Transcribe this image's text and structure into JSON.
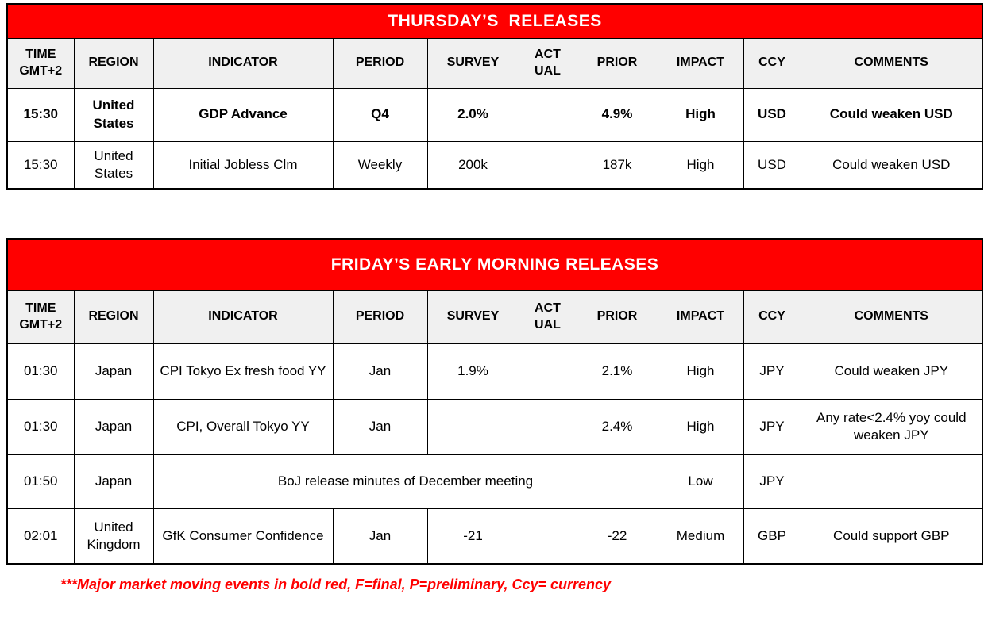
{
  "colors": {
    "accent_red": "#FF0000",
    "header_bg": "#F0F0F0",
    "border_color": "#000000",
    "text_color": "#000000"
  },
  "columns": {
    "time": "TIME\nGMT+2",
    "region": "REGION",
    "indicator": "INDICATOR",
    "period": "PERIOD",
    "survey": "SURVEY",
    "actual": "ACT\nUAL",
    "prior": "PRIOR",
    "impact": "IMPACT",
    "ccy": "CCY",
    "comments": "COMMENTS"
  },
  "tables": [
    {
      "title": "THURSDAY’S  RELEASES",
      "rows": [
        {
          "bold": true,
          "cells": [
            "15:30",
            "United States",
            "GDP Advance",
            "Q4",
            "2.0%",
            "",
            "4.9%",
            "High",
            "USD",
            "Could weaken USD"
          ]
        },
        {
          "bold": false,
          "cells": [
            "15:30",
            "United States",
            "Initial Jobless Clm",
            "Weekly",
            "200k",
            "",
            "187k",
            "High",
            "USD",
            "Could weaken USD"
          ]
        }
      ]
    },
    {
      "title": "FRIDAY’S EARLY MORNING RELEASES",
      "rows": [
        {
          "bold": false,
          "cells": [
            "01:30",
            "Japan",
            "CPI Tokyo Ex fresh food YY",
            "Jan",
            "1.9%",
            "",
            "2.1%",
            "High",
            "JPY",
            "Could weaken JPY"
          ]
        },
        {
          "bold": false,
          "cells": [
            "01:30",
            "Japan",
            "CPI, Overall Tokyo YY",
            "Jan",
            "",
            "",
            "2.4%",
            "High",
            "JPY",
            "Any rate<2.4% yoy could weaken JPY"
          ]
        },
        {
          "bold": false,
          "merged": true,
          "cells": [
            "01:50",
            "Japan",
            "BoJ release minutes of December meeting",
            "Low",
            "JPY",
            ""
          ]
        },
        {
          "bold": false,
          "cells": [
            "02:01",
            "United Kingdom",
            "GfK Consumer Confidence",
            "Jan",
            "-21",
            "",
            "-22",
            "Medium",
            "GBP",
            "Could support GBP"
          ]
        }
      ]
    }
  ],
  "footer_note": "***Major market moving events in bold red, F=final, P=preliminary, Ccy= currency"
}
